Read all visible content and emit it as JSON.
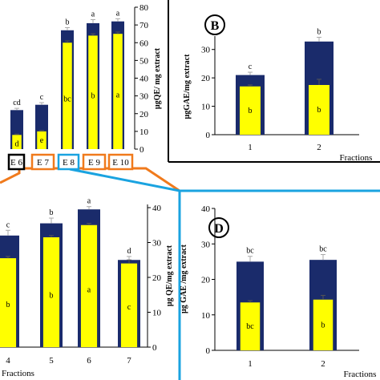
{
  "colors": {
    "navy": "#1a2b6b",
    "yellow": "#ffff00",
    "orange": "#f07a1c",
    "blue": "#1aa3e0",
    "black": "#000000"
  },
  "tick_values": {
    "A": [
      0,
      10,
      20,
      30,
      40,
      50,
      60,
      70,
      80
    ],
    "B": [
      0,
      10,
      20,
      30
    ],
    "C": [
      0,
      10,
      20,
      30,
      40
    ],
    "D": [
      0,
      10,
      20,
      30,
      40
    ]
  },
  "chart_data": [
    {
      "panel": "A",
      "type": "bar",
      "stacked": "overlay",
      "categories": [
        "",
        "",
        "",
        "",
        ""
      ],
      "ylabel": "μgQE/ mg extract",
      "ylim": [
        0,
        80
      ],
      "series": [
        {
          "values": [
            22,
            25,
            67,
            71,
            72
          ],
          "errors": [
            1,
            1.2,
            1.5,
            2,
            1.5
          ],
          "letters": [
            "cd",
            "c",
            "b",
            "a",
            "a"
          ]
        },
        {
          "values": [
            8,
            10,
            60,
            64,
            65
          ],
          "errors": [
            0.5,
            0.5,
            1,
            1,
            1
          ],
          "letters": [
            "d",
            "e",
            "bc",
            "b",
            "a"
          ]
        }
      ],
      "fraction_boxes": [
        {
          "label": "E 6",
          "color": "#000000"
        },
        {
          "label": "E 7",
          "color": "#f07a1c"
        },
        {
          "label": "E 8",
          "color": "#1aa3e0"
        },
        {
          "label": "E 9",
          "color": "#f07a1c"
        },
        {
          "label": "E 10",
          "color": "#f07a1c"
        }
      ]
    },
    {
      "panel": "B",
      "type": "bar",
      "stacked": "overlay",
      "panel_label": "B",
      "categories": [
        "1",
        "2"
      ],
      "xlabel": "Fractions",
      "ylabel": "μgGAE/mg  extract",
      "ylim": [
        0,
        35
      ],
      "series": [
        {
          "values": [
            21,
            32.8
          ],
          "errors": [
            1,
            1.5
          ],
          "letters": [
            "c",
            "b"
          ]
        },
        {
          "values": [
            17,
            17.5
          ],
          "errors": [
            0.5,
            2
          ],
          "letters": [
            "b",
            "b"
          ]
        }
      ]
    },
    {
      "panel": "C",
      "type": "bar",
      "stacked": "overlay",
      "categories": [
        "4",
        "5",
        "6",
        "7"
      ],
      "xlabel": "Fractions",
      "ylabel": "μg QE/mg  extract",
      "ylim": [
        0,
        40
      ],
      "series": [
        {
          "values": [
            32,
            35.5,
            39.5,
            25
          ],
          "errors": [
            1.5,
            1.5,
            0.8,
            1
          ],
          "letters": [
            "c",
            "b",
            "a",
            "d"
          ]
        },
        {
          "values": [
            25.5,
            31.5,
            35,
            24
          ],
          "errors": [
            0.5,
            0.5,
            0.5,
            1
          ],
          "letters": [
            "b",
            "b",
            "a",
            "c"
          ]
        }
      ]
    },
    {
      "panel": "D",
      "type": "bar",
      "stacked": "overlay",
      "panel_label": "D",
      "categories": [
        "1",
        "2"
      ],
      "xlabel": "Fractions",
      "ylabel": "μg GAE /mg extract",
      "ylim": [
        0,
        40
      ],
      "series": [
        {
          "values": [
            25,
            25.5
          ],
          "errors": [
            1.5,
            1.5
          ],
          "letters": [
            "bc",
            "bc"
          ]
        },
        {
          "values": [
            13.5,
            14.3
          ],
          "errors": [
            0.5,
            1.2
          ],
          "letters": [
            "bc",
            "b"
          ]
        }
      ]
    }
  ]
}
